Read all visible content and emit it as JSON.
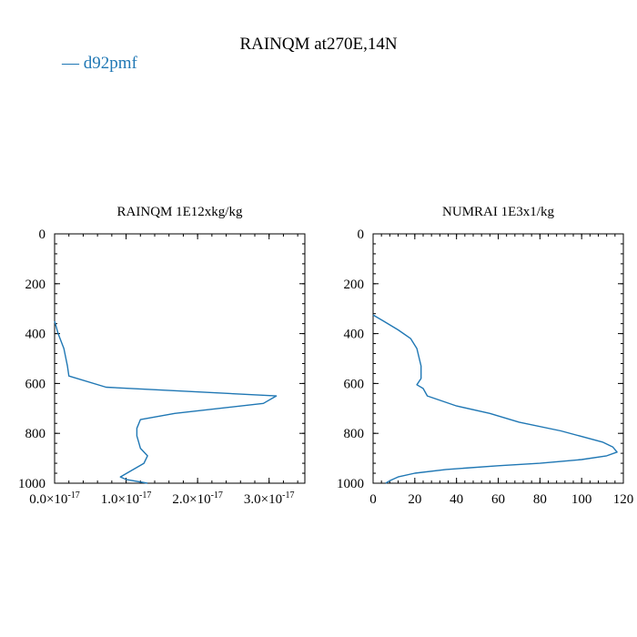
{
  "figure_title": "RAINQM at270E,14N",
  "legend": {
    "label": "d92pmf",
    "color": "#1f77b4"
  },
  "chart_data": [
    {
      "type": "line",
      "title": "RAINQM  1E12xkg/kg",
      "xlim": [
        0,
        3.5e-17
      ],
      "ylim": [
        1000,
        0
      ],
      "x_ticks": [
        0,
        1e-17,
        2e-17,
        3e-17
      ],
      "x_tick_labels": [
        {
          "mant": "0.0×10",
          "exp": "-17"
        },
        {
          "mant": "1.0×10",
          "exp": "-17"
        },
        {
          "mant": "2.0×10",
          "exp": "-17"
        },
        {
          "mant": "3.0×10",
          "exp": "-17"
        }
      ],
      "y_ticks": [
        0,
        200,
        400,
        600,
        800,
        1000
      ],
      "y_tick_labels": [
        "0",
        "200",
        "400",
        "600",
        "800",
        "1000"
      ],
      "series": [
        {
          "name": "d92pmf",
          "color": "#1f77b4",
          "x": [
            0,
            5e-19,
            1.3e-18,
            1.8e-18,
            2e-18,
            7.2e-18,
            3.1e-17,
            2.92e-17,
            1.68e-17,
            1.2e-17,
            1.15e-17,
            1.15e-17,
            1.2e-17,
            1.3e-17,
            1.25e-17,
            9.8e-18,
            9.2e-18,
            1e-17,
            1.3e-17
          ],
          "y": [
            350,
            400,
            460,
            530,
            570,
            615,
            650,
            680,
            720,
            745,
            780,
            810,
            860,
            890,
            920,
            965,
            975,
            985,
            1000
          ]
        }
      ]
    },
    {
      "type": "line",
      "title": "NUMRAI  1E3x1/kg",
      "xlim": [
        0,
        120
      ],
      "ylim": [
        1000,
        0
      ],
      "x_ticks": [
        0,
        20,
        40,
        60,
        80,
        100,
        120
      ],
      "x_tick_labels": [
        "0",
        "20",
        "40",
        "60",
        "80",
        "100",
        "120"
      ],
      "y_ticks": [
        0,
        200,
        400,
        600,
        800,
        1000
      ],
      "y_tick_labels": [
        "0",
        "200",
        "400",
        "600",
        "800",
        "1000"
      ],
      "series": [
        {
          "name": "d92pmf",
          "color": "#1f77b4",
          "x": [
            0,
            5,
            12,
            18,
            21,
            23,
            23,
            21,
            24,
            26,
            40,
            56,
            70,
            90,
            110,
            115,
            117,
            112,
            100,
            80,
            60,
            35,
            20,
            12,
            8,
            6
          ],
          "y": [
            325,
            350,
            385,
            420,
            460,
            530,
            580,
            605,
            620,
            650,
            690,
            720,
            755,
            790,
            835,
            855,
            875,
            890,
            905,
            920,
            930,
            945,
            960,
            975,
            990,
            1000
          ]
        }
      ]
    }
  ]
}
